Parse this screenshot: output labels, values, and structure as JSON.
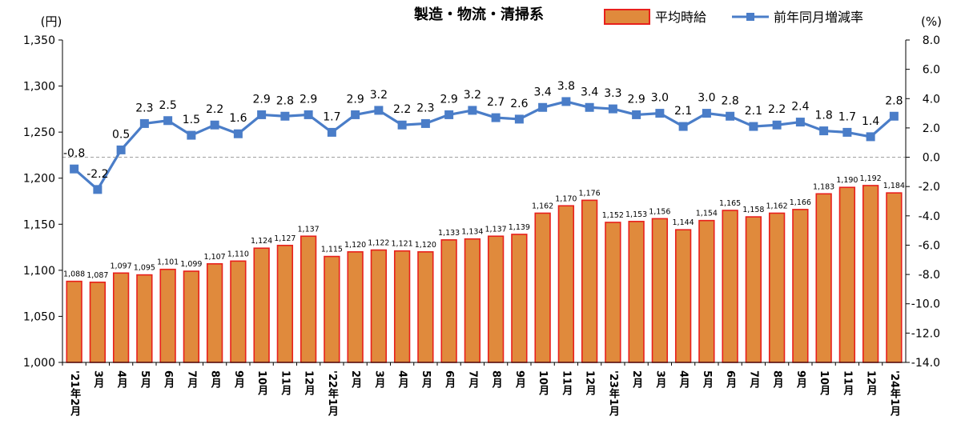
{
  "chart_data": {
    "type": "bar",
    "title": "製造・物流・清掃系",
    "ylabel_left": "(円)",
    "ylabel_right": "(%)",
    "categories": [
      "'21年2月",
      "3月",
      "4月",
      "5月",
      "6月",
      "7月",
      "8月",
      "9月",
      "10月",
      "11月",
      "12月",
      "'22年1月",
      "2月",
      "3月",
      "4月",
      "5月",
      "6月",
      "7月",
      "8月",
      "9月",
      "10月",
      "11月",
      "12月",
      "'23年1月",
      "2月",
      "3月",
      "4月",
      "5月",
      "6月",
      "7月",
      "8月",
      "9月",
      "10月",
      "11月",
      "12月",
      "'24年1月"
    ],
    "series": [
      {
        "name": "平均時給",
        "type": "bar",
        "axis": "left",
        "color": "#E08A3C",
        "edge_color": "#E8201C",
        "values": [
          1088,
          1087,
          1097,
          1095,
          1101,
          1099,
          1107,
          1110,
          1124,
          1127,
          1137,
          1115,
          1120,
          1122,
          1121,
          1120,
          1133,
          1134,
          1137,
          1139,
          1162,
          1170,
          1176,
          1152,
          1153,
          1156,
          1144,
          1154,
          1165,
          1158,
          1162,
          1166,
          1183,
          1190,
          1192,
          1184
        ],
        "labels": [
          "1,088",
          "1,087",
          "1,097",
          "1,095",
          "1,101",
          "1,099",
          "1,107",
          "1,110",
          "1,124",
          "1,127",
          "1,137",
          "1,115",
          "1,120",
          "1,122",
          "1,121",
          "1,120",
          "1,133",
          "1,134",
          "1,137",
          "1,139",
          "1,162",
          "1,170",
          "1,176",
          "1,152",
          "1,153",
          "1,156",
          "1,144",
          "1,154",
          "1,165",
          "1,158",
          "1,162",
          "1,166",
          "1,183",
          "1,190",
          "1,192",
          "1,184"
        ]
      },
      {
        "name": "前年同月増減率",
        "type": "line",
        "axis": "right",
        "color": "#4A7DC8",
        "values": [
          -0.8,
          -2.2,
          0.5,
          2.3,
          2.5,
          1.5,
          2.2,
          1.6,
          2.9,
          2.8,
          2.9,
          1.7,
          2.9,
          3.2,
          2.2,
          2.3,
          2.9,
          3.2,
          2.7,
          2.6,
          3.4,
          3.8,
          3.4,
          3.3,
          2.9,
          3.0,
          2.1,
          3.0,
          2.8,
          2.1,
          2.2,
          2.4,
          1.8,
          1.7,
          1.4,
          2.8
        ],
        "labels": [
          "-0.8",
          "-2.2",
          "0.5",
          "2.3",
          "2.5",
          "1.5",
          "2.2",
          "1.6",
          "2.9",
          "2.8",
          "2.9",
          "1.7",
          "2.9",
          "3.2",
          "2.2",
          "2.3",
          "2.9",
          "3.2",
          "2.7",
          "2.6",
          "3.4",
          "3.8",
          "3.4",
          "3.3",
          "2.9",
          "3.0",
          "2.1",
          "3.0",
          "2.8",
          "2.1",
          "2.2",
          "2.4",
          "1.8",
          "1.7",
          "1.4",
          "2.8"
        ]
      }
    ],
    "ylim_left": [
      1000,
      1350
    ],
    "ylim_right": [
      -14.0,
      8.0
    ],
    "left_ticks": [
      "1,000",
      "1,050",
      "1,100",
      "1,150",
      "1,200",
      "1,250",
      "1,300",
      "1,350"
    ],
    "right_ticks": [
      "-14.0",
      "-12.0",
      "-10.0",
      "-8.0",
      "-6.0",
      "-4.0",
      "-2.0",
      "0.0",
      "2.0",
      "4.0",
      "6.0",
      "8.0"
    ],
    "zero_line": "dashed",
    "grid": false,
    "legend_position": "top-right"
  }
}
